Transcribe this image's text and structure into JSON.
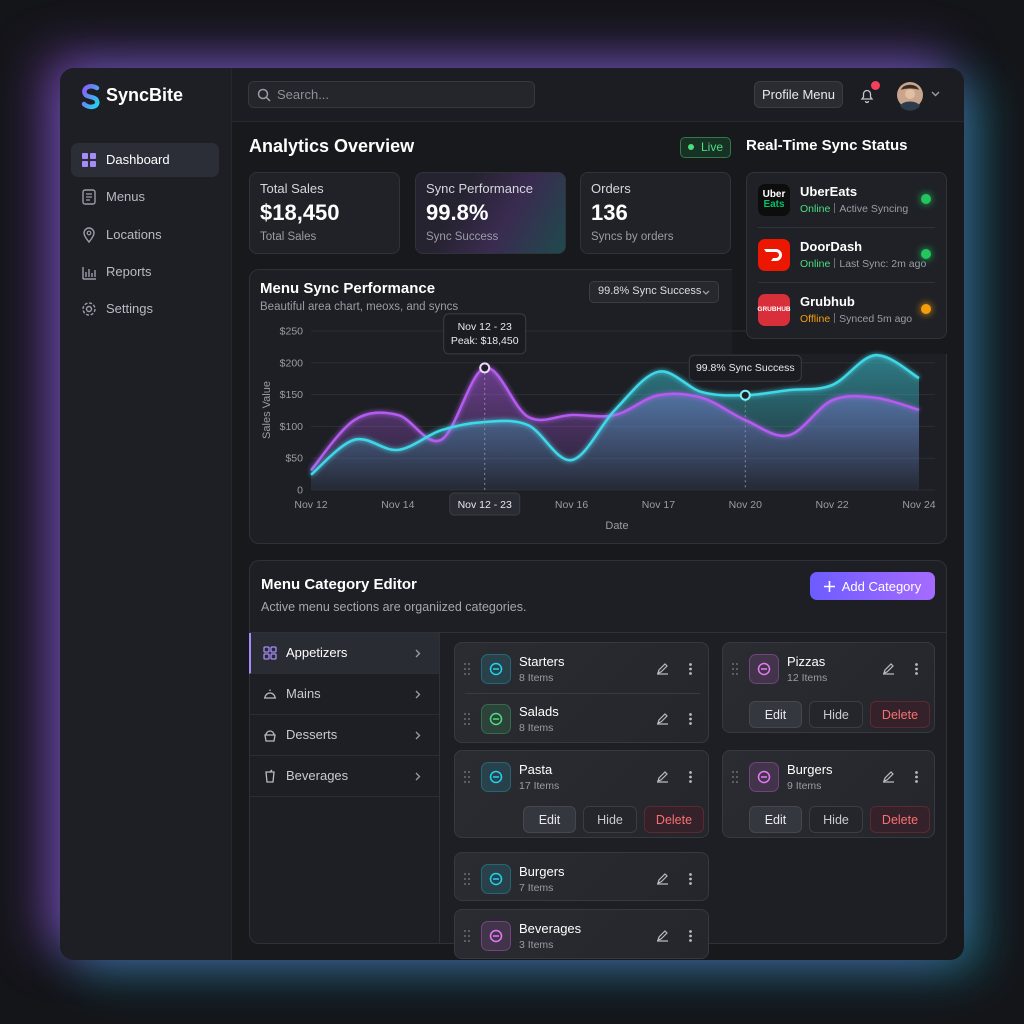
{
  "brand": "SyncBite",
  "nav": [
    "Dashboard",
    "Menus",
    "Locations",
    "Reports",
    "Settings"
  ],
  "search_placeholder": "Search...",
  "profile_menu": "Profile Menu",
  "analytics": {
    "title": "Analytics Overview",
    "live": "Live",
    "stats": [
      {
        "label": "Total Sales",
        "value": "$18,450",
        "sub": "Total Sales"
      },
      {
        "label": "Sync Performance",
        "value": "99.8%",
        "sub": "Sync Success"
      },
      {
        "label": "Orders",
        "value": "136",
        "sub": "Syncs by orders"
      }
    ]
  },
  "sync_status": {
    "title": "Real-Time Sync Status",
    "platforms": [
      {
        "name": "UberEats",
        "logo": [
          "Uber",
          "Eats"
        ],
        "status": "Online",
        "detail": "Active Syncing"
      },
      {
        "name": "DoorDash",
        "status": "Online",
        "detail": "Last Sync: 2m ago"
      },
      {
        "name": "Grubhub",
        "logo": [
          "GRUBHUB"
        ],
        "status": "Offline",
        "detail": "Synced 5m ago"
      }
    ]
  },
  "chart_data": {
    "type": "area",
    "title": "Menu Sync Performance",
    "subtitle": "Beautiful area chart, meoxs, and syncs",
    "filter": "99.8% Sync Success",
    "y_label": "Sales Value",
    "x_label": "Date",
    "categories": [
      "Nov 12",
      null,
      "Nov 14",
      null,
      "Nov 12 - 23",
      null,
      "Nov 16",
      null,
      "Nov 17",
      null,
      "Nov 20",
      null,
      "Nov 22",
      null,
      "Nov 24"
    ],
    "series": [
      {
        "color": "#b45cf0",
        "values": [
          31,
          110,
          118,
          79,
          192,
          115,
          118,
          118,
          149,
          145,
          110,
          86,
          141,
          145,
          126
        ]
      },
      {
        "color": "#3fd8e8",
        "values": [
          24,
          79,
          63,
          94,
          107,
          102,
          47,
          126,
          186,
          154,
          149,
          157,
          165,
          212,
          176
        ]
      }
    ],
    "ylim": [
      0,
      250
    ],
    "yticks": [
      0,
      {
        "value": 50,
        "label": "$50"
      },
      {
        "value": 100,
        "label": "$100"
      },
      {
        "value": 150,
        "label": "$150"
      },
      {
        "value": 200,
        "label": "$200"
      },
      {
        "value": 250,
        "label": "$250"
      }
    ],
    "grid": true,
    "annotations": [
      {
        "text": [
          "Nov 12 - 23",
          "Peak: $18,450"
        ]
      },
      {
        "text": [
          "99.8% Sync Success"
        ]
      }
    ]
  },
  "category_editor": {
    "title": "Menu Category Editor",
    "subtitle": "Active menu sections are organiized categories.",
    "add_button": "Add Category",
    "sections": [
      "Appetizers",
      "Mains",
      "Desserts",
      "Beverages"
    ],
    "cards": [
      {
        "items": [
          {
            "name": "Starters",
            "count": "8 Items"
          },
          {
            "name": "Salads",
            "count": "8 Items"
          }
        ]
      },
      {
        "items": [
          {
            "name": "Pizzas",
            "count": "12 Items"
          }
        ],
        "actions": [
          "Edit",
          "Hide",
          "Delete"
        ]
      },
      {
        "items": [
          {
            "name": "Pasta",
            "count": "17 Items"
          }
        ],
        "actions": [
          "Edit",
          "Hide",
          "Delete"
        ]
      },
      {
        "items": [
          {
            "name": "Burgers",
            "count": "9 Items"
          }
        ],
        "actions": [
          "Edit",
          "Hide",
          "Delete"
        ]
      },
      {
        "items": [
          {
            "name": "Burgers",
            "count": "7 Items"
          }
        ]
      },
      {
        "items": [
          {
            "name": "Beverages",
            "count": "3 Items"
          }
        ]
      }
    ]
  }
}
